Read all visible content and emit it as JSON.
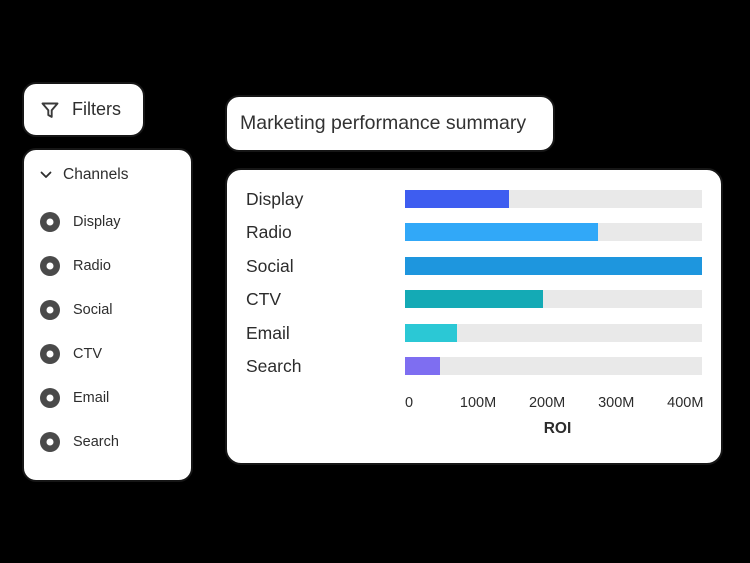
{
  "colors": {
    "background": "#000000",
    "card_border": "#161616",
    "text": "#2e2e2e",
    "track": "#E9E9E9"
  },
  "filters_button": {
    "label": "Filters"
  },
  "channels_panel": {
    "header_label": "Channels",
    "items": [
      "Display",
      "Radio",
      "Social",
      "CTV",
      "Email",
      "Search"
    ]
  },
  "summary_card": {
    "title": "Marketing performance summary"
  },
  "chart_data": {
    "type": "bar",
    "orientation": "horizontal",
    "title": "Marketing performance summary",
    "categories": [
      "Display",
      "Radio",
      "Social",
      "CTV",
      "Email",
      "Search"
    ],
    "values": [
      150,
      280,
      430,
      200,
      75,
      50
    ],
    "value_unit": "millions",
    "bar_colors": [
      "#3E5DF0",
      "#31A8F8",
      "#1E96DE",
      "#14AAB5",
      "#2BC8D5",
      "#7E6EF1"
    ],
    "track_color": "#E9E9E9",
    "xlabel": "ROI",
    "ylabel": "",
    "xlim": [
      0,
      430
    ],
    "x_ticks": [
      {
        "label": "0",
        "value": 0
      },
      {
        "label": "100M",
        "value": 100
      },
      {
        "label": "200M",
        "value": 200
      },
      {
        "label": "300M",
        "value": 300
      },
      {
        "label": "400M",
        "value": 400
      }
    ],
    "grid": false,
    "legend": null
  }
}
